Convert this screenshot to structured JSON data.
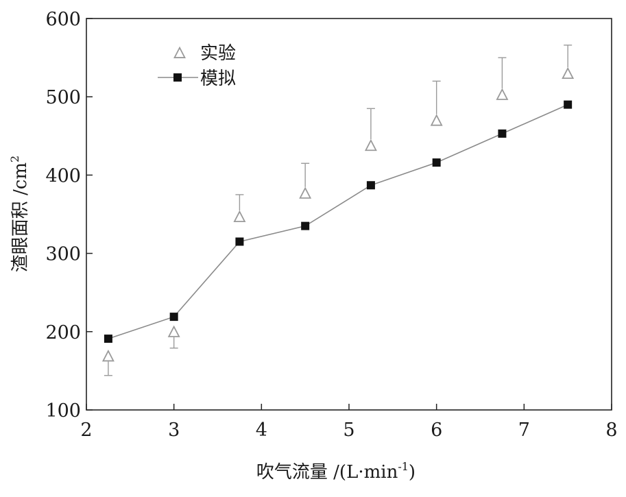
{
  "chart_data": {
    "type": "line",
    "xlabel": "吹气流量 /(L·min",
    "xlabel_sup": "-1",
    "xlabel_tail": ")",
    "ylabel": "渣眼面积 /cm",
    "ylabel_sup": "2",
    "xlim": [
      2,
      8
    ],
    "ylim": [
      100,
      600
    ],
    "xticks": [
      "2",
      "3",
      "4",
      "5",
      "6",
      "7",
      "8"
    ],
    "yticks": [
      "100",
      "200",
      "300",
      "400",
      "500",
      "600"
    ],
    "grid": false,
    "legend_position": "top-left",
    "series": [
      {
        "name": "实验",
        "marker": "open-triangle",
        "line": false,
        "color": "#9a9a9a",
        "x": [
          2.25,
          3.0,
          3.75,
          4.5,
          5.25,
          6.0,
          6.75,
          7.5
        ],
        "y": [
          168,
          199,
          346,
          376,
          437,
          469,
          502,
          529
        ],
        "error_upper": [
          null,
          null,
          375,
          415,
          485,
          520,
          550,
          566
        ],
        "error_lower": [
          144,
          179,
          null,
          null,
          null,
          null,
          null,
          null
        ]
      },
      {
        "name": "模拟",
        "marker": "filled-square",
        "line": true,
        "color": "#111111",
        "line_color": "#8a8a8a",
        "x": [
          2.25,
          3.0,
          3.75,
          4.5,
          5.25,
          6.0,
          6.75,
          7.5
        ],
        "y": [
          191,
          219,
          315,
          335,
          387,
          416,
          453,
          490
        ]
      }
    ]
  }
}
